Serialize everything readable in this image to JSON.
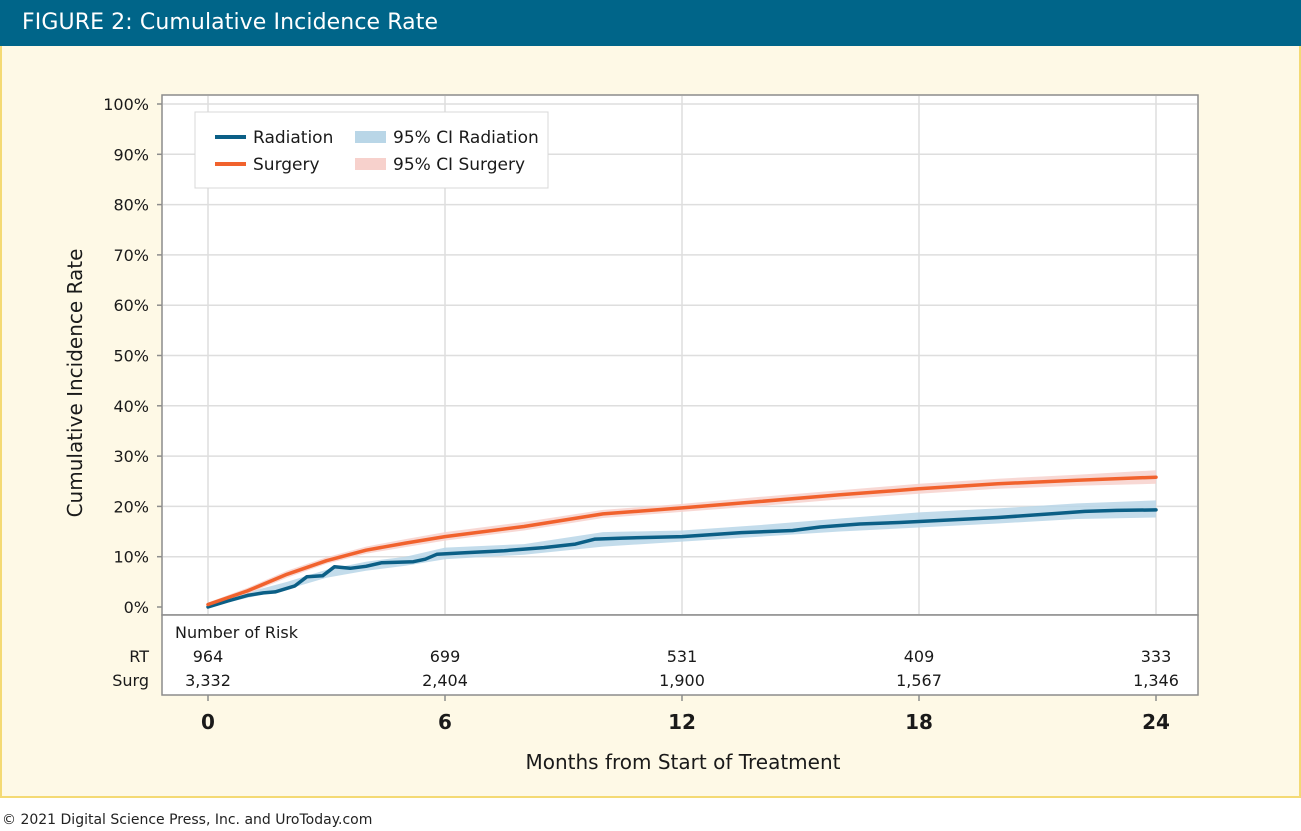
{
  "header": {
    "title": "FIGURE 2: Cumulative Incidence Rate"
  },
  "footer": {
    "copyright": "© 2021 Digital Science Press, Inc. and UroToday.com"
  },
  "colors": {
    "header_bg": "#006589",
    "panel_bg": "#fef9e6",
    "panel_border": "#f4da74",
    "radiation": "#0b5f86",
    "surgery": "#f1622d",
    "ci_radiation": "#b9d6e7",
    "ci_surgery": "#f7d1cc"
  },
  "chart_data": {
    "type": "line",
    "title": "FIGURE 2: Cumulative Incidence Rate",
    "xlabel": "Months from Start of Treatment",
    "ylabel": "Cumulative Incidence Rate",
    "xlim": [
      0,
      24
    ],
    "ylim": [
      0,
      100
    ],
    "x_ticks": [
      "0",
      "6",
      "12",
      "18",
      "24"
    ],
    "y_ticks": [
      "0%",
      "10%",
      "20%",
      "30%",
      "40%",
      "50%",
      "60%",
      "70%",
      "80%",
      "90%",
      "100%"
    ],
    "grid": true,
    "legend_position": "top-left",
    "legend": {
      "radiation": "Radiation",
      "surgery": "Surgery",
      "ci_radiation": "95% CI Radiation",
      "ci_surgery": "95% CI Surgery"
    },
    "series": [
      {
        "name": "Radiation",
        "x": [
          0,
          0.5,
          1,
          1.4,
          1.7,
          2.2,
          2.5,
          2.9,
          3.2,
          3.6,
          4.0,
          4.4,
          4.8,
          5.2,
          5.5,
          5.8,
          6.5,
          7.5,
          8.5,
          9.3,
          9.8,
          10.5,
          12,
          13.5,
          14.8,
          15.5,
          16.5,
          17.5,
          18.5,
          20,
          21.5,
          22.2,
          23,
          24
        ],
        "values": [
          0,
          1.2,
          2.3,
          2.8,
          3.0,
          4.2,
          6.0,
          6.2,
          8.0,
          7.7,
          8.1,
          8.8,
          8.9,
          9.0,
          9.5,
          10.5,
          10.8,
          11.2,
          11.8,
          12.5,
          13.5,
          13.7,
          14.0,
          14.8,
          15.2,
          15.9,
          16.5,
          16.8,
          17.2,
          17.8,
          18.6,
          19.0,
          19.2,
          19.3
        ],
        "ci_band": "95% CI Radiation"
      },
      {
        "name": "Surgery",
        "x": [
          0,
          1,
          2,
          3,
          4,
          5,
          6,
          8,
          10,
          12,
          14,
          16,
          18,
          20,
          22,
          24
        ],
        "values": [
          0.5,
          3.2,
          6.5,
          9.2,
          11.3,
          12.7,
          14.0,
          16.0,
          18.5,
          19.7,
          21.0,
          22.3,
          23.5,
          24.5,
          25.2,
          25.8
        ],
        "ci_band": "95% CI Surgery"
      }
    ],
    "ci_bands": [
      {
        "name": "95% CI Radiation",
        "x": [
          0,
          1,
          2,
          3,
          4,
          5,
          6,
          8,
          10,
          12,
          14,
          16,
          18,
          20,
          22,
          24
        ],
        "lower": [
          0,
          1.8,
          3.5,
          5.8,
          7.2,
          8.2,
          9.5,
          10.4,
          12.0,
          13.0,
          14.0,
          15.0,
          15.8,
          16.6,
          17.5,
          17.8
        ],
        "upper": [
          0.6,
          2.9,
          5.0,
          7.4,
          9.0,
          10.0,
          11.8,
          12.5,
          14.9,
          15.2,
          16.3,
          17.6,
          18.8,
          19.6,
          20.6,
          21.2
        ]
      },
      {
        "name": "95% CI Surgery",
        "x": [
          0,
          1,
          2,
          3,
          4,
          5,
          6,
          8,
          10,
          12,
          14,
          16,
          18,
          20,
          22,
          24
        ],
        "lower": [
          0.1,
          2.6,
          5.8,
          8.6,
          10.6,
          11.9,
          13.2,
          15.2,
          17.7,
          18.9,
          20.1,
          21.4,
          22.5,
          23.5,
          24.1,
          24.5
        ],
        "upper": [
          0.9,
          3.8,
          7.2,
          9.9,
          12.0,
          13.5,
          14.9,
          16.9,
          19.3,
          20.5,
          21.9,
          23.2,
          24.5,
          25.5,
          26.3,
          27.2
        ]
      }
    ],
    "risk_table": {
      "title": "Number of Risk",
      "months": [
        0,
        6,
        12,
        18,
        24
      ],
      "rows": [
        {
          "label": "RT",
          "values": [
            "964",
            "699",
            "531",
            "409",
            "333"
          ]
        },
        {
          "label": "Surg",
          "values": [
            "3,332",
            "2,404",
            "1,900",
            "1,567",
            "1,346"
          ]
        }
      ]
    }
  }
}
